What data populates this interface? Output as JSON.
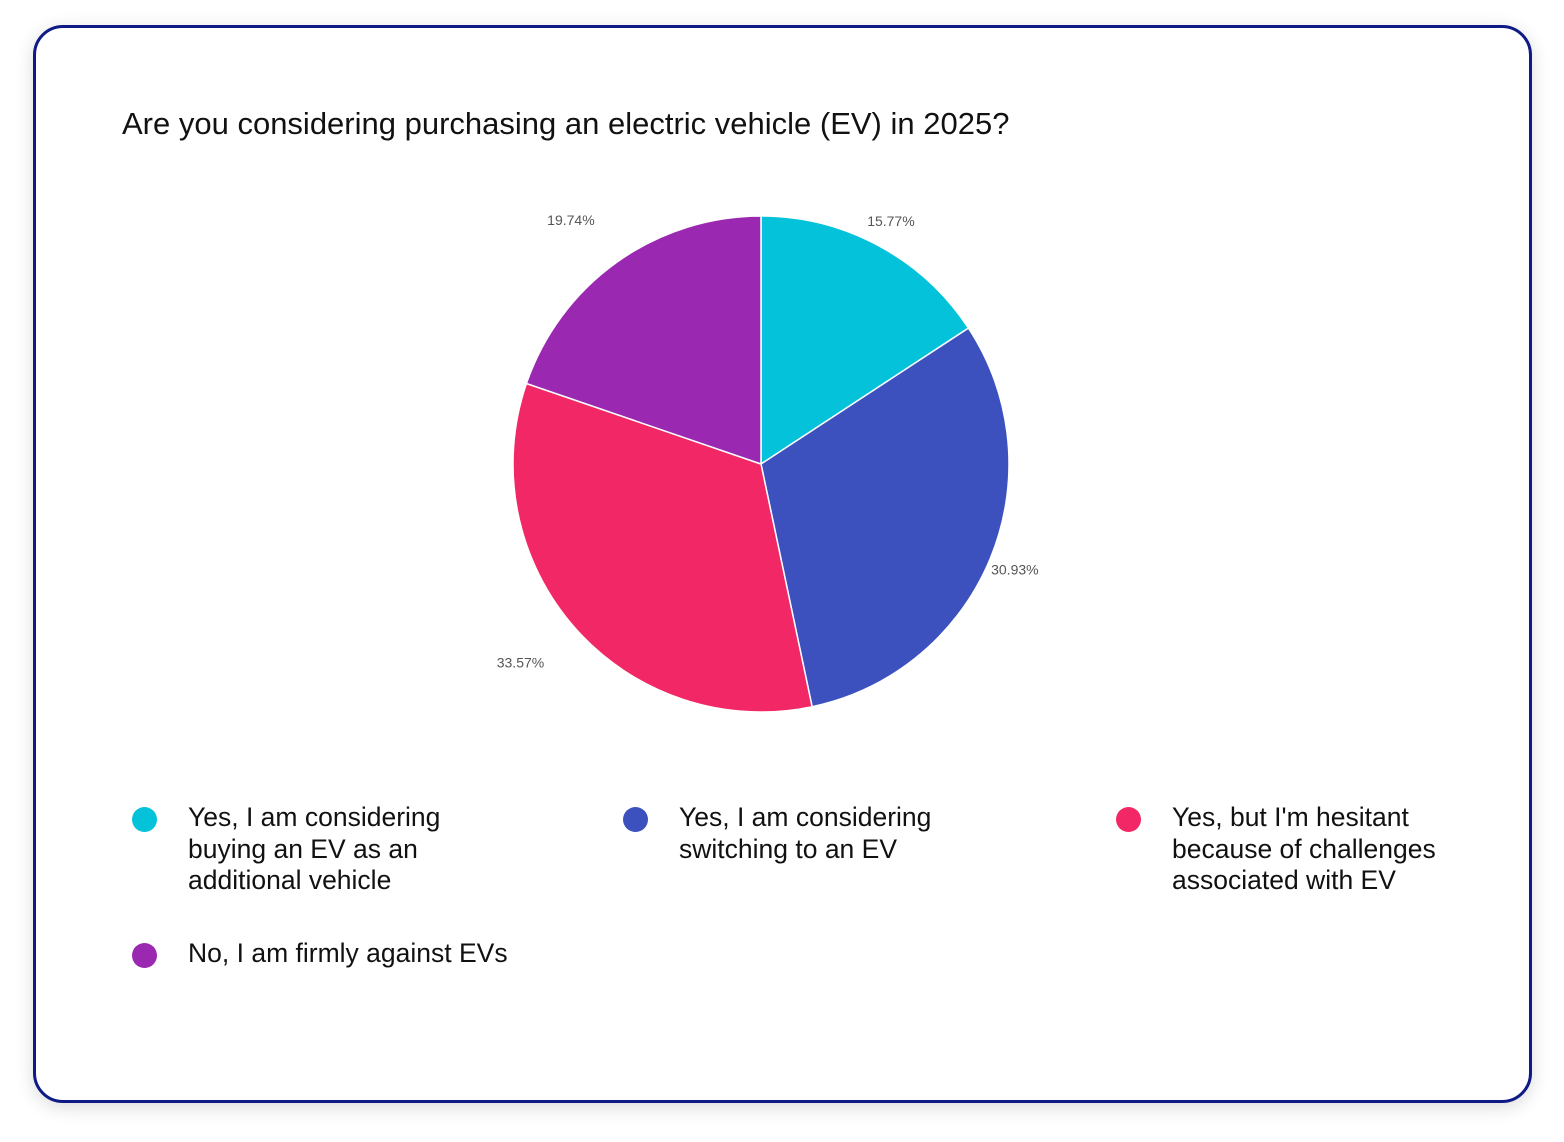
{
  "chart_data": {
    "type": "pie",
    "title": "Are you considering purchasing an electric vehicle (EV) in 2025?",
    "slices": [
      {
        "label": "Yes, I am considering buying an EV as an additional vehicle",
        "value": 15.77,
        "value_label": "15.77%",
        "color": "#04c2d9"
      },
      {
        "label": "Yes, I am considering switching to an EV",
        "value": 30.93,
        "value_label": "30.93%",
        "color": "#3c51bd"
      },
      {
        "label": "Yes, but I'm hesitant because of challenges associated with EV",
        "value": 33.57,
        "value_label": "33.57%",
        "color": "#f12865"
      },
      {
        "label": "No, I am  firmly against EVs",
        "value": 19.74,
        "value_label": "19.74%",
        "color": "#9b28b1"
      }
    ],
    "start_angle": "top, clockwise",
    "legend_placement": "bottom"
  },
  "colors": {
    "border": "#0f1a87"
  }
}
